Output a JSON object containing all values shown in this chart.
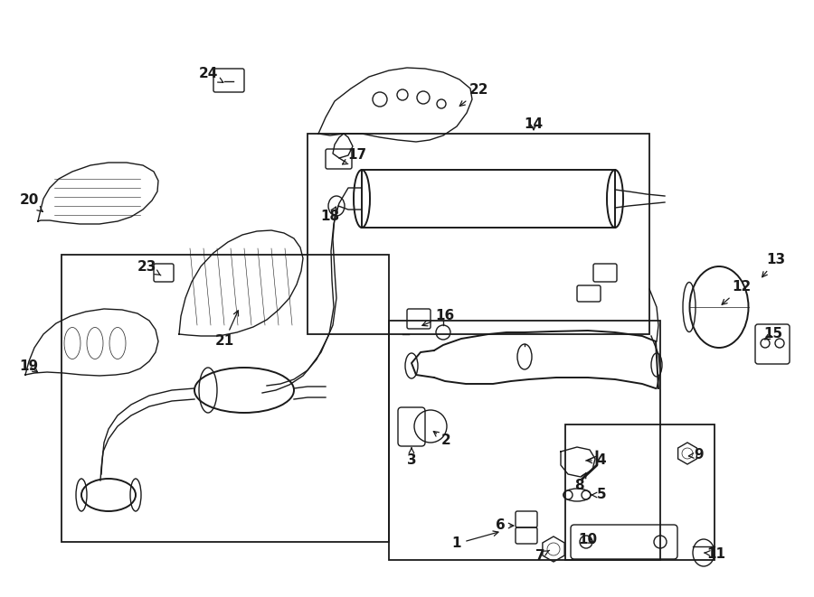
{
  "bg_color": "#ffffff",
  "line_color": "#1a1a1a",
  "fig_width": 9.0,
  "fig_height": 6.61,
  "dpi": 100,
  "xlim": [
    0,
    900
  ],
  "ylim": [
    0,
    661
  ]
}
